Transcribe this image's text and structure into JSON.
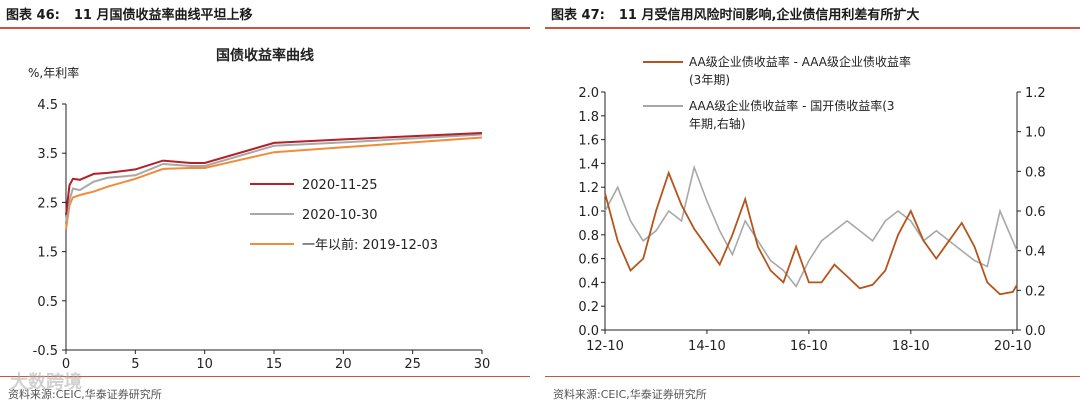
{
  "left": {
    "figure_label": "图表 46:",
    "title": "11 月国债收益率曲线平坦上移",
    "source": "资料来源:CEIC,华泰证券研究所"
  },
  "right": {
    "figure_label": "图表 47:",
    "title": "11 月受信用风险时间影响,企业债信用利差有所扩大",
    "source": "资料来源:CEIC,华泰证券研究所"
  },
  "watermark": "大数跨境",
  "colors": {
    "rule": "#c8553d"
  },
  "chart_data": [
    {
      "type": "line",
      "title": "国债收益率曲线",
      "ylabel": "%,年利率",
      "xlabel": "",
      "xlim": [
        0,
        30
      ],
      "ylim": [
        -0.5,
        4.5
      ],
      "xticks": [
        0,
        5,
        10,
        15,
        20,
        25,
        30
      ],
      "yticks": [
        -0.5,
        0.5,
        1.5,
        2.5,
        3.5,
        4.5
      ],
      "legend_position": "center-right",
      "series": [
        {
          "name": "2020-11-25",
          "color": "#b22028",
          "x": [
            0,
            0.25,
            0.5,
            1,
            2,
            3,
            5,
            7,
            9,
            10,
            15,
            20,
            30
          ],
          "y": [
            2.25,
            2.85,
            2.98,
            2.96,
            3.08,
            3.1,
            3.17,
            3.35,
            3.3,
            3.3,
            3.71,
            3.78,
            3.91
          ]
        },
        {
          "name": "2020-10-30",
          "color": "#a8a8a8",
          "x": [
            0,
            0.25,
            0.5,
            1,
            2,
            3,
            5,
            7,
            9,
            10,
            15,
            20,
            30
          ],
          "y": [
            2.1,
            2.55,
            2.78,
            2.75,
            2.92,
            3.0,
            3.05,
            3.28,
            3.24,
            3.24,
            3.65,
            3.72,
            3.88
          ]
        },
        {
          "name": "一年以前: 2019-12-03",
          "color": "#f08c3a",
          "x": [
            0,
            0.25,
            0.5,
            1,
            2,
            3,
            5,
            7,
            9,
            10,
            15,
            20,
            30
          ],
          "y": [
            1.95,
            2.45,
            2.6,
            2.65,
            2.72,
            2.82,
            2.98,
            3.18,
            3.2,
            3.2,
            3.52,
            3.62,
            3.82
          ]
        }
      ]
    },
    {
      "type": "line",
      "title": "",
      "xlabel": "",
      "ylabel": "",
      "xticks": [
        "12-10",
        "14-10",
        "16-10",
        "18-10",
        "20-10"
      ],
      "xlim": [
        "2012-10",
        "2020-11"
      ],
      "ylim": [
        0.0,
        2.0
      ],
      "ylim_right": [
        0.0,
        1.2
      ],
      "yticks": [
        0.0,
        0.2,
        0.4,
        0.6,
        0.8,
        1.0,
        1.2,
        1.4,
        1.6,
        1.8,
        2.0
      ],
      "yticks_right": [
        0.0,
        0.2,
        0.4,
        0.6,
        0.8,
        1.0,
        1.2
      ],
      "legend_position": "top",
      "series": [
        {
          "name": "AA级企业债收益率 - AAA级企业债收益率(3年期)",
          "color": "#b5541b",
          "axis": "left",
          "x": [
            "2012-10",
            "2013-01",
            "2013-04",
            "2013-07",
            "2013-10",
            "2014-01",
            "2014-04",
            "2014-07",
            "2014-10",
            "2015-01",
            "2015-04",
            "2015-07",
            "2015-10",
            "2016-01",
            "2016-04",
            "2016-07",
            "2016-10",
            "2017-01",
            "2017-04",
            "2017-07",
            "2017-10",
            "2018-01",
            "2018-04",
            "2018-07",
            "2018-10",
            "2019-01",
            "2019-04",
            "2019-07",
            "2019-10",
            "2020-01",
            "2020-04",
            "2020-07",
            "2020-10",
            "2020-11"
          ],
          "y": [
            1.15,
            0.75,
            0.5,
            0.6,
            1.0,
            1.32,
            1.05,
            0.85,
            0.7,
            0.55,
            0.8,
            1.1,
            0.7,
            0.5,
            0.4,
            0.7,
            0.4,
            0.4,
            0.55,
            0.45,
            0.35,
            0.38,
            0.5,
            0.8,
            1.0,
            0.75,
            0.6,
            0.75,
            0.9,
            0.7,
            0.4,
            0.3,
            0.32,
            0.38
          ]
        },
        {
          "name": "AAA级企业债收益率 - 国开债收益率(3年期,右轴)",
          "color": "#a8a8a8",
          "axis": "right",
          "x": [
            "2012-10",
            "2013-01",
            "2013-04",
            "2013-07",
            "2013-10",
            "2014-01",
            "2014-04",
            "2014-07",
            "2014-10",
            "2015-01",
            "2015-04",
            "2015-07",
            "2015-10",
            "2016-01",
            "2016-04",
            "2016-07",
            "2016-10",
            "2017-01",
            "2017-04",
            "2017-07",
            "2017-10",
            "2018-01",
            "2018-04",
            "2018-07",
            "2018-10",
            "2019-01",
            "2019-04",
            "2019-07",
            "2019-10",
            "2020-01",
            "2020-04",
            "2020-07",
            "2020-10",
            "2020-11"
          ],
          "y": [
            0.6,
            0.72,
            0.55,
            0.45,
            0.5,
            0.6,
            0.55,
            0.82,
            0.65,
            0.5,
            0.38,
            0.55,
            0.45,
            0.35,
            0.3,
            0.22,
            0.35,
            0.45,
            0.5,
            0.55,
            0.5,
            0.45,
            0.55,
            0.6,
            0.55,
            0.45,
            0.5,
            0.45,
            0.4,
            0.35,
            0.32,
            0.6,
            0.45,
            0.4
          ]
        }
      ]
    }
  ]
}
